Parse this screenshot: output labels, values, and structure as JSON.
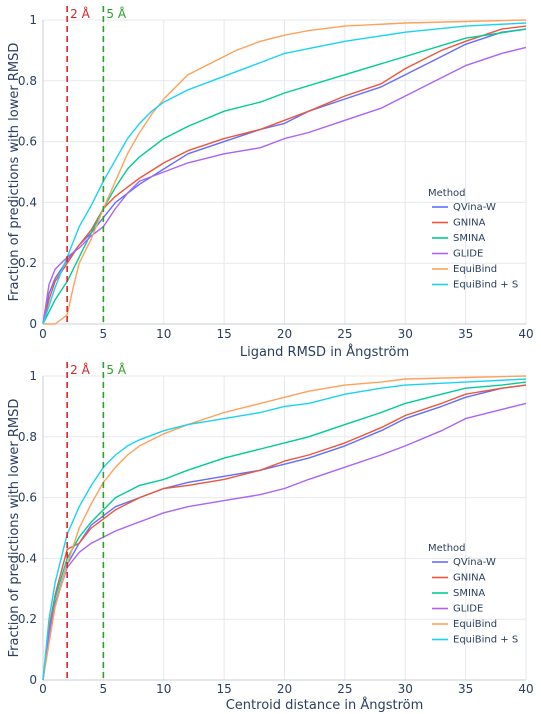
{
  "colors": {
    "QVina-W": "#636efa",
    "GNINA": "#ef553b",
    "SMINA": "#00cc96",
    "GLIDE": "#ab63fa",
    "EquiBind": "#ffa15a",
    "EquiBind + S": "#19d3f3",
    "ref_2A": "#d62728",
    "ref_5A": "#2ca02c"
  },
  "chart_data": [
    {
      "type": "line",
      "subtype": "cumulative distribution",
      "xlabel": "Ligand RMSD in Ångström",
      "ylabel": "Fraction of predictions with lower RMSD",
      "xlim": [
        0,
        40
      ],
      "ylim": [
        0,
        1
      ],
      "x_ticks": [
        "0",
        "5",
        "10",
        "15",
        "20",
        "25",
        "30",
        "35",
        "40"
      ],
      "y_ticks": [
        "0",
        "0.2",
        "0.4",
        "0.6",
        "0.8",
        "1"
      ],
      "grid": true,
      "legend_title": "Method",
      "legend_position": "right",
      "reference_lines": [
        {
          "x": 2,
          "label": "2 Å",
          "color": "#d62728"
        },
        {
          "x": 5,
          "label": "5 Å",
          "color": "#2ca02c"
        }
      ],
      "series": [
        {
          "name": "QVina-W",
          "x": [
            0,
            0.5,
            1,
            2,
            3,
            4,
            5,
            6,
            7,
            8,
            10,
            12,
            15,
            18,
            20,
            22,
            25,
            28,
            30,
            33,
            35,
            38,
            40
          ],
          "y": [
            0,
            0.1,
            0.15,
            0.21,
            0.26,
            0.3,
            0.35,
            0.4,
            0.43,
            0.46,
            0.51,
            0.56,
            0.6,
            0.64,
            0.66,
            0.7,
            0.74,
            0.78,
            0.82,
            0.88,
            0.92,
            0.96,
            0.97
          ]
        },
        {
          "name": "GNINA",
          "x": [
            0,
            0.5,
            1,
            2,
            3,
            4,
            5,
            6,
            7,
            8,
            10,
            12,
            15,
            18,
            20,
            22,
            25,
            28,
            30,
            33,
            35,
            38,
            40
          ],
          "y": [
            0,
            0.08,
            0.14,
            0.2,
            0.26,
            0.31,
            0.38,
            0.42,
            0.45,
            0.48,
            0.53,
            0.57,
            0.61,
            0.64,
            0.67,
            0.7,
            0.75,
            0.79,
            0.84,
            0.9,
            0.93,
            0.97,
            0.98
          ]
        },
        {
          "name": "SMINA",
          "x": [
            0,
            1,
            2,
            3,
            4,
            5,
            6,
            7,
            8,
            9,
            10,
            12,
            15,
            18,
            20,
            25,
            30,
            35,
            40
          ],
          "y": [
            0,
            0.08,
            0.14,
            0.22,
            0.3,
            0.38,
            0.45,
            0.51,
            0.55,
            0.58,
            0.61,
            0.65,
            0.7,
            0.73,
            0.76,
            0.82,
            0.88,
            0.94,
            0.97
          ]
        },
        {
          "name": "GLIDE",
          "x": [
            0,
            0.5,
            1,
            2,
            3,
            4,
            5,
            6,
            7,
            8,
            10,
            12,
            15,
            18,
            20,
            22,
            25,
            28,
            30,
            33,
            35,
            38,
            40
          ],
          "y": [
            0,
            0.13,
            0.18,
            0.22,
            0.25,
            0.29,
            0.32,
            0.38,
            0.43,
            0.47,
            0.5,
            0.53,
            0.56,
            0.58,
            0.61,
            0.63,
            0.67,
            0.71,
            0.75,
            0.81,
            0.85,
            0.89,
            0.91
          ]
        },
        {
          "name": "EquiBind",
          "x": [
            0,
            1,
            2,
            2.5,
            3,
            4,
            5,
            6,
            7,
            8,
            9,
            10,
            11,
            12,
            14,
            16,
            18,
            20,
            22,
            25,
            30,
            35,
            40
          ],
          "y": [
            0,
            0.0,
            0.03,
            0.12,
            0.2,
            0.28,
            0.38,
            0.47,
            0.56,
            0.63,
            0.69,
            0.74,
            0.78,
            0.82,
            0.86,
            0.9,
            0.93,
            0.95,
            0.965,
            0.98,
            0.99,
            0.995,
            1.0
          ]
        },
        {
          "name": "EquiBind + S",
          "x": [
            0,
            1,
            2,
            3,
            4,
            5,
            6,
            7,
            8,
            9,
            10,
            12,
            14,
            16,
            18,
            20,
            25,
            30,
            35,
            40
          ],
          "y": [
            0,
            0.12,
            0.22,
            0.32,
            0.39,
            0.47,
            0.54,
            0.61,
            0.66,
            0.7,
            0.73,
            0.77,
            0.8,
            0.83,
            0.86,
            0.89,
            0.93,
            0.96,
            0.98,
            0.99
          ]
        }
      ]
    },
    {
      "type": "line",
      "subtype": "cumulative distribution",
      "xlabel": "Centroid distance in Ångström",
      "ylabel": "Fraction of predictions with lower RMSD",
      "xlim": [
        0,
        40
      ],
      "ylim": [
        0,
        1
      ],
      "x_ticks": [
        "0",
        "5",
        "10",
        "15",
        "20",
        "25",
        "30",
        "35",
        "40"
      ],
      "y_ticks": [
        "0",
        "0.2",
        "0.4",
        "0.6",
        "0.8",
        "1"
      ],
      "grid": true,
      "legend_title": "Method",
      "legend_position": "right",
      "reference_lines": [
        {
          "x": 2,
          "label": "2 Å",
          "color": "#d62728"
        },
        {
          "x": 5,
          "label": "5 Å",
          "color": "#2ca02c"
        }
      ],
      "series": [
        {
          "name": "QVina-W",
          "x": [
            0,
            0.5,
            1,
            2,
            3,
            4,
            5,
            6,
            8,
            10,
            12,
            15,
            18,
            20,
            22,
            25,
            28,
            30,
            33,
            35,
            38,
            40
          ],
          "y": [
            0,
            0.15,
            0.25,
            0.38,
            0.45,
            0.51,
            0.54,
            0.57,
            0.6,
            0.63,
            0.65,
            0.67,
            0.69,
            0.71,
            0.73,
            0.77,
            0.82,
            0.86,
            0.9,
            0.93,
            0.96,
            0.97
          ]
        },
        {
          "name": "GNINA",
          "x": [
            0,
            0.5,
            1,
            2,
            3,
            4,
            5,
            6,
            8,
            10,
            12,
            15,
            18,
            20,
            22,
            25,
            28,
            30,
            33,
            35,
            38,
            40
          ],
          "y": [
            0,
            0.17,
            0.28,
            0.43,
            0.45,
            0.5,
            0.53,
            0.56,
            0.6,
            0.63,
            0.64,
            0.66,
            0.69,
            0.72,
            0.74,
            0.78,
            0.83,
            0.87,
            0.91,
            0.94,
            0.96,
            0.97
          ]
        },
        {
          "name": "SMINA",
          "x": [
            0,
            0.5,
            1,
            2,
            3,
            4,
            5,
            6,
            8,
            10,
            12,
            15,
            18,
            20,
            22,
            25,
            28,
            30,
            33,
            35,
            38,
            40
          ],
          "y": [
            0,
            0.15,
            0.27,
            0.4,
            0.47,
            0.52,
            0.56,
            0.6,
            0.64,
            0.66,
            0.69,
            0.73,
            0.76,
            0.78,
            0.8,
            0.84,
            0.88,
            0.91,
            0.94,
            0.96,
            0.97,
            0.98
          ]
        },
        {
          "name": "GLIDE",
          "x": [
            0,
            0.5,
            1,
            2,
            3,
            4,
            5,
            6,
            8,
            10,
            12,
            15,
            18,
            20,
            22,
            25,
            28,
            30,
            33,
            35,
            38,
            40
          ],
          "y": [
            0,
            0.15,
            0.25,
            0.37,
            0.42,
            0.45,
            0.47,
            0.49,
            0.52,
            0.55,
            0.57,
            0.59,
            0.61,
            0.63,
            0.66,
            0.7,
            0.74,
            0.77,
            0.82,
            0.86,
            0.89,
            0.91
          ]
        },
        {
          "name": "EquiBind",
          "x": [
            0,
            0.5,
            1,
            2,
            3,
            4,
            5,
            6,
            7,
            8,
            10,
            12,
            15,
            18,
            20,
            22,
            25,
            28,
            30,
            35,
            40
          ],
          "y": [
            0,
            0.12,
            0.24,
            0.38,
            0.5,
            0.58,
            0.65,
            0.7,
            0.74,
            0.77,
            0.81,
            0.84,
            0.88,
            0.91,
            0.93,
            0.95,
            0.97,
            0.98,
            0.99,
            0.995,
            1.0
          ]
        },
        {
          "name": "EquiBind + S",
          "x": [
            0,
            0.5,
            1,
            2,
            3,
            4,
            5,
            6,
            7,
            8,
            10,
            12,
            15,
            18,
            20,
            22,
            25,
            28,
            30,
            35,
            40
          ],
          "y": [
            0,
            0.2,
            0.32,
            0.48,
            0.57,
            0.64,
            0.7,
            0.74,
            0.77,
            0.79,
            0.82,
            0.84,
            0.86,
            0.88,
            0.9,
            0.91,
            0.94,
            0.96,
            0.97,
            0.98,
            0.99
          ]
        }
      ]
    }
  ]
}
